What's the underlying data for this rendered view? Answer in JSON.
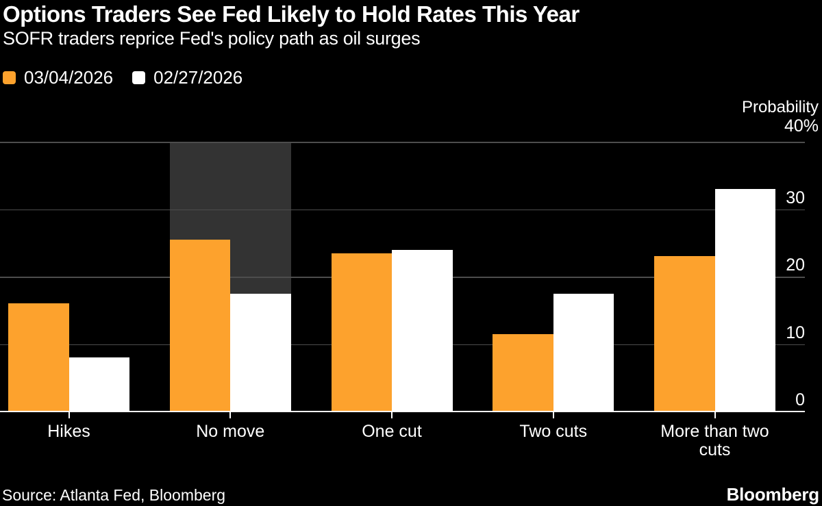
{
  "chart_data": {
    "type": "bar",
    "title": "Options Traders See Fed Likely to Hold Rates This Year",
    "subtitle": "SOFR traders reprice Fed's policy path as oil surges",
    "categories": [
      "Hikes",
      "No move",
      "One cut",
      "Two cuts",
      "More than two cuts"
    ],
    "series": [
      {
        "name": "03/04/2026",
        "color": "#FDA22D",
        "values": [
          16,
          25.5,
          23.5,
          11.5,
          23
        ]
      },
      {
        "name": "02/27/2026",
        "color": "#FFFFFF",
        "values": [
          8,
          17.5,
          24,
          17.5,
          33
        ]
      }
    ],
    "ylabel": "Probability",
    "y_unit": "%",
    "ylim": [
      0,
      40
    ],
    "yticks": [
      40,
      30,
      20,
      10,
      0
    ],
    "ytick_labels": [
      "40%",
      "30",
      "20",
      "10",
      "0"
    ],
    "grid": true,
    "legend_position": "top-left",
    "highlight_band": {
      "category": "No move",
      "from": 40,
      "to": 17.5,
      "color": "#333333"
    }
  },
  "footer": {
    "source": "Source: Atlanta Fed, Bloomberg",
    "brand": "Bloomberg"
  },
  "colors": {
    "background": "#000000",
    "gridline": "#4d4d4d",
    "axis_line": "#FFFFFF",
    "text": "#FFFFFF",
    "accent_orange": "#FDA22D"
  }
}
